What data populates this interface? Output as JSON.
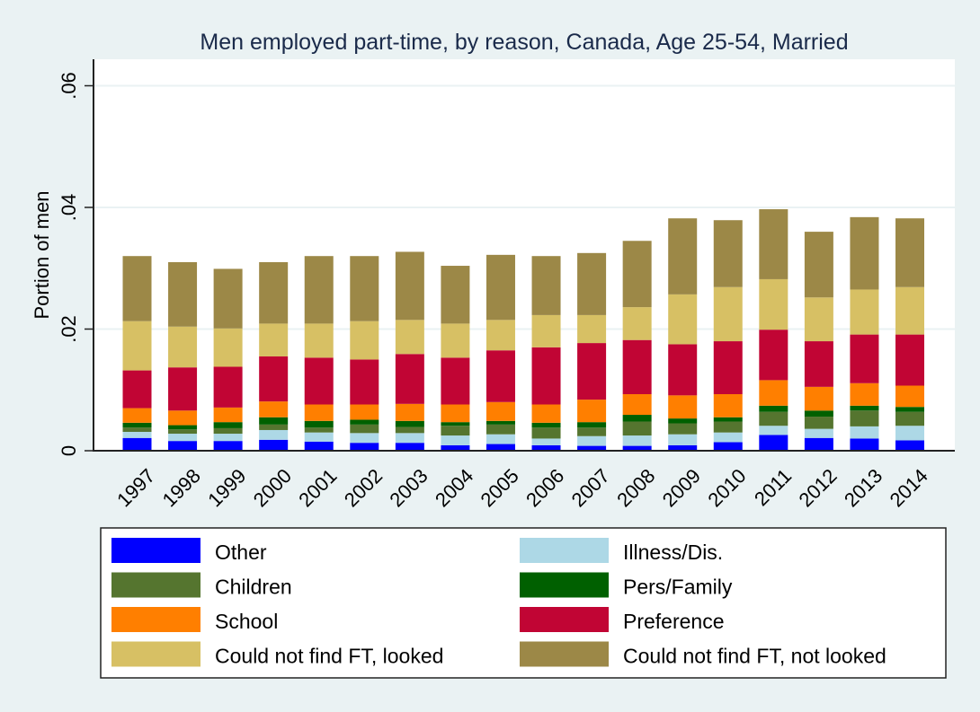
{
  "chart_data": {
    "type": "bar",
    "stacked": true,
    "title": "Men employed part-time, by reason, Canada, Age 25-54, Married",
    "xlabel": "",
    "ylabel": "Portion of men",
    "ylim": [
      0,
      0.064
    ],
    "yticks": [
      0,
      0.02,
      0.04,
      0.06
    ],
    "ytick_labels": [
      "0",
      ".02",
      ".04",
      ".06"
    ],
    "grid": true,
    "legend_position": "bottom",
    "categories": [
      "1997",
      "1998",
      "1999",
      "2000",
      "2001",
      "2002",
      "2003",
      "2004",
      "2005",
      "2006",
      "2007",
      "2008",
      "2009",
      "2010",
      "2011",
      "2012",
      "2013",
      "2014"
    ],
    "series": [
      {
        "name": "Other",
        "color": "#0000ff",
        "values": [
          0.0021,
          0.0016,
          0.0016,
          0.0018,
          0.0015,
          0.0013,
          0.0013,
          0.0009,
          0.0011,
          0.0009,
          0.0008,
          0.0008,
          0.0009,
          0.0014,
          0.0026,
          0.0021,
          0.002,
          0.0017
        ]
      },
      {
        "name": "Illness/Dis.",
        "color": "#add8e6",
        "values": [
          0.001,
          0.0012,
          0.0012,
          0.0016,
          0.0015,
          0.0016,
          0.0016,
          0.0016,
          0.0016,
          0.0011,
          0.0016,
          0.0017,
          0.0018,
          0.0016,
          0.0015,
          0.0015,
          0.002,
          0.0024
        ]
      },
      {
        "name": "Children",
        "color": "#55752f",
        "values": [
          0.0007,
          0.0007,
          0.0009,
          0.0009,
          0.0008,
          0.0014,
          0.001,
          0.0016,
          0.0016,
          0.0018,
          0.0014,
          0.0023,
          0.0018,
          0.0018,
          0.0023,
          0.002,
          0.0026,
          0.0023
        ]
      },
      {
        "name": "Pers/Family",
        "color": "#006000",
        "values": [
          0.0008,
          0.0007,
          0.001,
          0.0012,
          0.0011,
          0.0008,
          0.001,
          0.0006,
          0.0006,
          0.0008,
          0.0009,
          0.0011,
          0.0008,
          0.0007,
          0.001,
          0.001,
          0.0008,
          0.0008
        ]
      },
      {
        "name": "School",
        "color": "#ff7f00",
        "values": [
          0.0024,
          0.0024,
          0.0024,
          0.0026,
          0.0027,
          0.0025,
          0.0028,
          0.0029,
          0.0031,
          0.003,
          0.0037,
          0.0034,
          0.0038,
          0.0038,
          0.0042,
          0.0039,
          0.0037,
          0.0035
        ]
      },
      {
        "name": "Preference",
        "color": "#c10534",
        "values": [
          0.0062,
          0.0071,
          0.0067,
          0.0074,
          0.0077,
          0.0074,
          0.0082,
          0.0077,
          0.0085,
          0.0094,
          0.0093,
          0.0089,
          0.0084,
          0.0087,
          0.0083,
          0.0075,
          0.008,
          0.0084
        ]
      },
      {
        "name": "Could not find FT, looked",
        "color": "#d7c064",
        "values": [
          0.0081,
          0.0067,
          0.0063,
          0.0054,
          0.0056,
          0.0063,
          0.0056,
          0.0056,
          0.005,
          0.0053,
          0.0046,
          0.0054,
          0.0082,
          0.0089,
          0.0083,
          0.0072,
          0.0074,
          0.0078
        ]
      },
      {
        "name": "Could not find FT, not looked",
        "color": "#9c8847",
        "values": [
          0.0107,
          0.0106,
          0.0098,
          0.0101,
          0.0111,
          0.0107,
          0.0112,
          0.0095,
          0.0107,
          0.0097,
          0.0102,
          0.0109,
          0.0125,
          0.011,
          0.0115,
          0.0108,
          0.0119,
          0.0113
        ]
      }
    ],
    "legend_order": [
      0,
      1,
      2,
      3,
      4,
      5,
      6,
      7
    ]
  }
}
